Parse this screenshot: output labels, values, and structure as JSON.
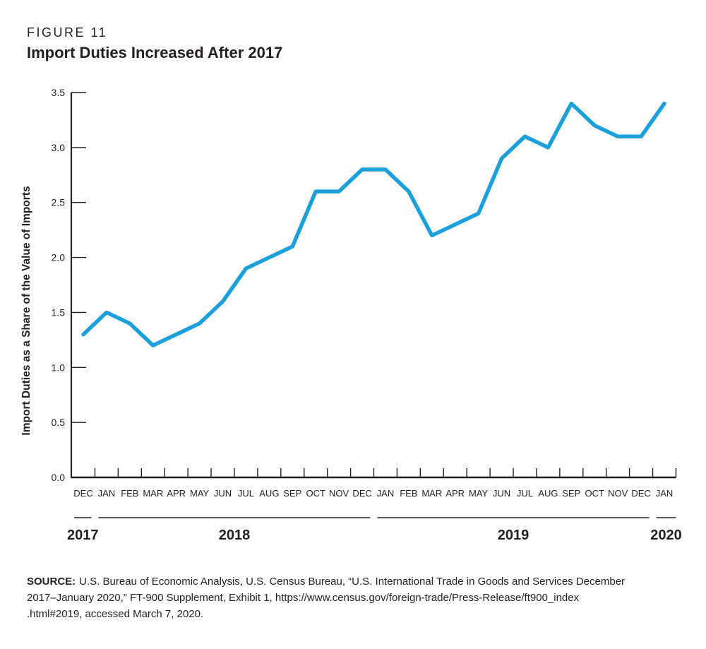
{
  "figure": {
    "label": "FIGURE 11",
    "title": "Import Duties Increased After 2017"
  },
  "chart_data": {
    "type": "line",
    "title": "Import Duties Increased After 2017",
    "ylabel": "Import Duties as a Share of the Value of Imports",
    "xlabel": "",
    "ylim": [
      0.0,
      3.5
    ],
    "ytick_step": 0.5,
    "grid": false,
    "legend": "none",
    "categories": [
      "DEC",
      "JAN",
      "FEB",
      "MAR",
      "APR",
      "MAY",
      "JUN",
      "JUL",
      "AUG",
      "SEP",
      "OCT",
      "NOV",
      "DEC",
      "JAN",
      "FEB",
      "MAR",
      "APR",
      "MAY",
      "JUN",
      "JUL",
      "AUG",
      "SEP",
      "OCT",
      "NOV",
      "DEC",
      "JAN"
    ],
    "year_groups": [
      {
        "label": "2017",
        "months": 1
      },
      {
        "label": "2018",
        "months": 12
      },
      {
        "label": "2019",
        "months": 12
      },
      {
        "label": "2020",
        "months": 1
      }
    ],
    "series": [
      {
        "name": "Import duties as a share of the value of imports (%)",
        "values": [
          1.3,
          1.5,
          1.4,
          1.2,
          1.3,
          1.4,
          1.6,
          1.9,
          2.0,
          2.1,
          2.6,
          2.6,
          2.8,
          2.8,
          2.6,
          2.2,
          2.3,
          2.4,
          2.9,
          3.1,
          3.0,
          3.4,
          3.2,
          3.1,
          3.1,
          3.4
        ]
      }
    ],
    "line_color": "#1BA0DB",
    "axis_color": "#231F20"
  },
  "source": {
    "label": "SOURCE:",
    "lines": [
      "U.S. Bureau of Economic Analysis, U.S. Census Bureau, “U.S. International Trade in Goods and Services December",
      "2017–January 2020,” FT-900 Supplement, Exhibit 1, https://www.census.gov/foreign-trade/Press-Release/ft900_index",
      ".html#2019, accessed March 7, 2020."
    ]
  }
}
